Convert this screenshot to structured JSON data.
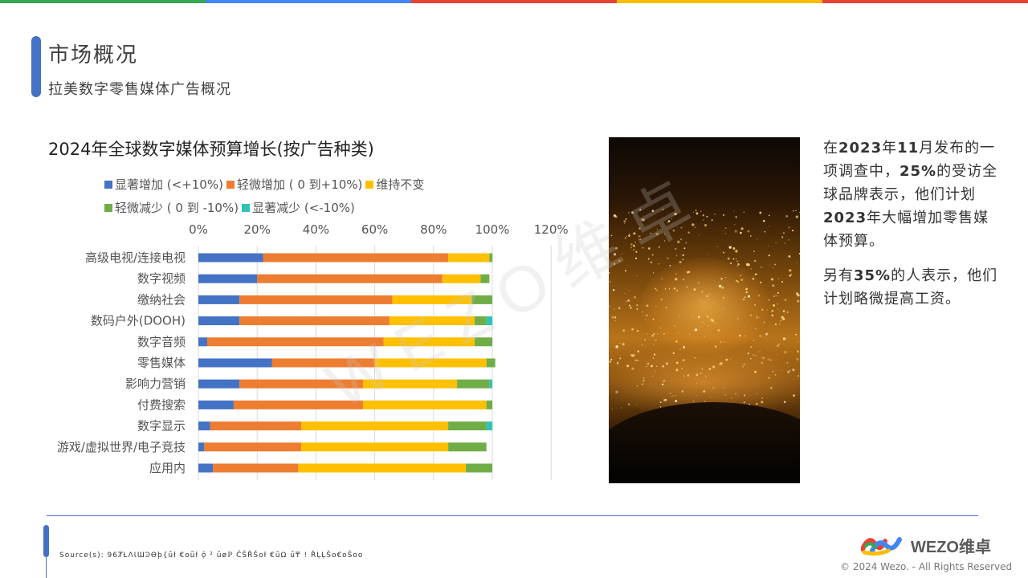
{
  "header": {
    "title": "市场概况",
    "subtitle": "拉美数字零售媒体广告概况"
  },
  "top_bar_colors": [
    "#34A853",
    "#4285F4",
    "#EA4335",
    "#FBBC05",
    "#EA4335"
  ],
  "watermark": "WEZO维卓",
  "chart_data": {
    "type": "bar",
    "orientation": "horizontal",
    "stacked": true,
    "title": "2024年全球数字媒体预算增长(按广告种类)",
    "categories": [
      "高级电视/连接电视",
      "数字视频",
      "缴纳社会",
      "数码户外(DOOH)",
      "数字音频",
      "零售媒体",
      "影响力营销",
      "付费搜索",
      "数字显示",
      "游戏/虚拟世界/电子竞技",
      "应用内"
    ],
    "x_ticks": [
      "0%",
      "20%",
      "40%",
      "60%",
      "80%",
      "100%",
      "120%"
    ],
    "xlim": [
      0,
      120
    ],
    "grid": true,
    "legend_position": "top",
    "series": [
      {
        "name": "显著增加 (<+10%)",
        "color": "#4472C4",
        "values": [
          22,
          20,
          14,
          14,
          3,
          25,
          14,
          12,
          4,
          2,
          5
        ]
      },
      {
        "name": "轻微增加 ( 0 到+10%)",
        "color": "#ED7D31",
        "values": [
          63,
          63,
          52,
          51,
          60,
          35,
          42,
          44,
          31,
          33,
          29
        ]
      },
      {
        "name": "维持不变",
        "color": "#FFC000",
        "values": [
          14,
          13,
          27,
          29,
          31,
          38,
          32,
          42,
          50,
          50,
          57
        ]
      },
      {
        "name": "轻微减少 ( 0 到 -10%)",
        "color": "#70AD47",
        "values": [
          1,
          3,
          7,
          4,
          6,
          3,
          11,
          2,
          13,
          13,
          9
        ]
      },
      {
        "name": "显著减少 (<-10%)",
        "color": "#2EC4B6",
        "values": [
          0,
          0,
          0,
          2,
          0,
          0,
          1,
          0,
          2,
          0,
          0
        ]
      }
    ]
  },
  "side_text": {
    "p1_a": "在",
    "p1_b": "2023",
    "p1_c": "年",
    "p1_d": "11",
    "p1_e": "月发布的一项调查中，",
    "p1_f": "25%",
    "p1_g": "的受访全球品牌表示，他们计划",
    "p1_h": "2023",
    "p1_i": "年大幅增加零售媒体预算。",
    "p2_a": "另有",
    "p2_b": "35%",
    "p2_c": "的人表示，他们计划略微提高工资。"
  },
  "footer": {
    "source": "Source(s): 96ȾȽɅƖƜϿƟϸ{ǘł €oǘł ộ ² ǘøℙ ČŠŘŠoł €ǘΩ ǘ₸ ! ŘĻĻŠo€oŠoo",
    "logo_text": "WEZO维卓",
    "copyright": "© 2024 Wezo. - All Rights Reserved"
  }
}
